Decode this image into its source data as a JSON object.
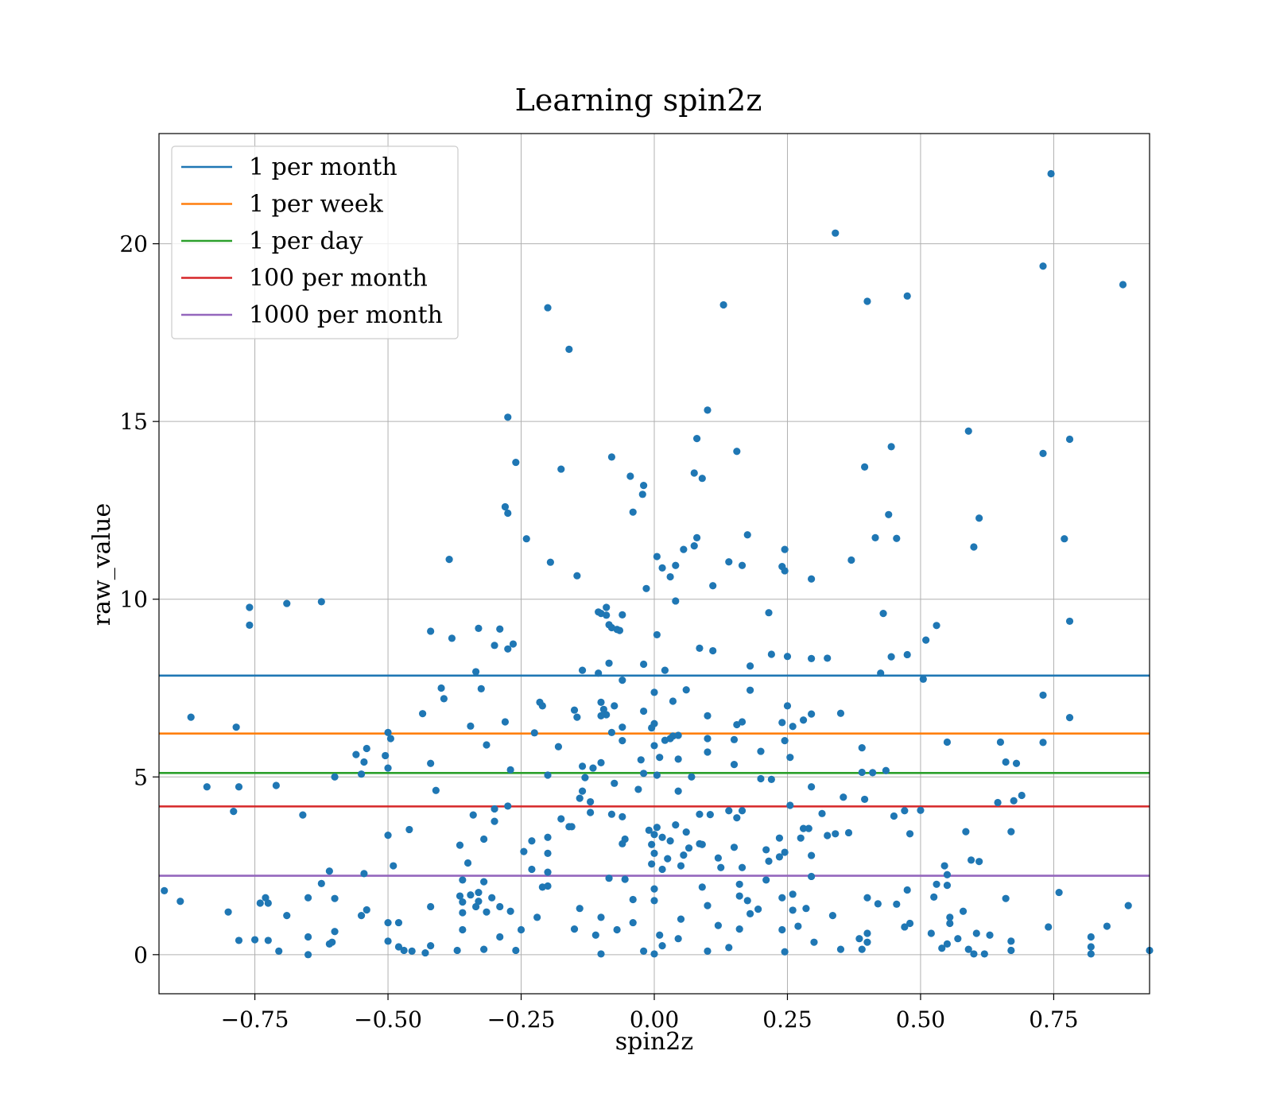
{
  "chart_data": {
    "type": "scatter",
    "title": "Learning spin2z",
    "xlabel": "spin2z",
    "ylabel": "raw_value",
    "xlim": [
      -0.93,
      0.93
    ],
    "ylim": [
      -1.1,
      23.1
    ],
    "xticks": [
      -0.75,
      -0.5,
      -0.25,
      0.0,
      0.25,
      0.5,
      0.75
    ],
    "xtick_labels": [
      "−0.75",
      "−0.50",
      "−0.25",
      "0.00",
      "0.25",
      "0.50",
      "0.75"
    ],
    "yticks": [
      0,
      5,
      10,
      15,
      20
    ],
    "ytick_labels": [
      "0",
      "5",
      "10",
      "15",
      "20"
    ],
    "grid": true,
    "legend_position": "upper-left",
    "point_color": "#1f77b4",
    "thresholds": [
      {
        "name": "1 per month",
        "value": 7.85,
        "color": "#1f77b4"
      },
      {
        "name": "1 per week",
        "value": 6.22,
        "color": "#ff7f0e"
      },
      {
        "name": "1 per day",
        "value": 5.11,
        "color": "#2ca02c"
      },
      {
        "name": "100 per month",
        "value": 4.17,
        "color": "#d62728"
      },
      {
        "name": "1000 per month",
        "value": 2.22,
        "color": "#9467bd"
      }
    ],
    "points": [
      [
        0.745,
        21.97
      ],
      [
        0.34,
        20.3
      ],
      [
        0.73,
        19.37
      ],
      [
        0.88,
        18.85
      ],
      [
        0.475,
        18.53
      ],
      [
        0.4,
        18.38
      ],
      [
        0.13,
        18.28
      ],
      [
        -0.2,
        18.2
      ],
      [
        -0.16,
        17.03
      ],
      [
        0.1,
        15.32
      ],
      [
        -0.275,
        15.12
      ],
      [
        0.59,
        14.73
      ],
      [
        0.08,
        14.52
      ],
      [
        0.78,
        14.5
      ],
      [
        0.445,
        14.29
      ],
      [
        0.155,
        14.16
      ],
      [
        0.73,
        14.1
      ],
      [
        -0.08,
        14.0
      ],
      [
        -0.26,
        13.85
      ],
      [
        0.395,
        13.72
      ],
      [
        -0.175,
        13.66
      ],
      [
        0.075,
        13.55
      ],
      [
        -0.045,
        13.46
      ],
      [
        0.09,
        13.4
      ],
      [
        -0.02,
        13.2
      ],
      [
        -0.022,
        12.95
      ],
      [
        -0.28,
        12.6
      ],
      [
        -0.04,
        12.45
      ],
      [
        -0.275,
        12.42
      ],
      [
        0.44,
        12.38
      ],
      [
        0.61,
        12.28
      ],
      [
        0.175,
        11.81
      ],
      [
        -0.24,
        11.7
      ],
      [
        0.08,
        11.73
      ],
      [
        0.415,
        11.73
      ],
      [
        0.455,
        11.71
      ],
      [
        0.77,
        11.7
      ],
      [
        0.055,
        11.4
      ],
      [
        0.6,
        11.47
      ],
      [
        0.075,
        11.5
      ],
      [
        0.245,
        11.4
      ],
      [
        0.005,
        11.2
      ],
      [
        -0.385,
        11.12
      ],
      [
        0.37,
        11.1
      ],
      [
        0.14,
        11.05
      ],
      [
        -0.195,
        11.04
      ],
      [
        0.04,
        10.95
      ],
      [
        0.165,
        10.95
      ],
      [
        0.015,
        10.88
      ],
      [
        0.24,
        10.92
      ],
      [
        0.245,
        10.8
      ],
      [
        0.03,
        10.63
      ],
      [
        -0.145,
        10.66
      ],
      [
        0.295,
        10.57
      ],
      [
        0.11,
        10.38
      ],
      [
        -0.015,
        10.3
      ],
      [
        0.04,
        9.95
      ],
      [
        -0.625,
        9.93
      ],
      [
        -0.69,
        9.88
      ],
      [
        -0.76,
        9.77
      ],
      [
        -0.09,
        9.77
      ],
      [
        -0.105,
        9.64
      ],
      [
        -0.1,
        9.6
      ],
      [
        -0.09,
        9.55
      ],
      [
        -0.06,
        9.56
      ],
      [
        0.215,
        9.62
      ],
      [
        0.43,
        9.6
      ],
      [
        0.78,
        9.38
      ],
      [
        -0.76,
        9.27
      ],
      [
        -0.085,
        9.28
      ],
      [
        -0.08,
        9.2
      ],
      [
        -0.07,
        9.15
      ],
      [
        -0.065,
        9.12
      ],
      [
        0.53,
        9.26
      ],
      [
        -0.33,
        9.18
      ],
      [
        -0.29,
        9.16
      ],
      [
        -0.42,
        9.1
      ],
      [
        0.005,
        9.0
      ],
      [
        -0.38,
        8.9
      ],
      [
        0.51,
        8.85
      ],
      [
        -0.3,
        8.7
      ],
      [
        -0.265,
        8.74
      ],
      [
        -0.275,
        8.6
      ],
      [
        0.085,
        8.62
      ],
      [
        0.11,
        8.55
      ],
      [
        0.22,
        8.45
      ],
      [
        0.445,
        8.38
      ],
      [
        0.475,
        8.44
      ],
      [
        0.25,
        8.39
      ],
      [
        0.295,
        8.33
      ],
      [
        0.325,
        8.34
      ],
      [
        -0.085,
        8.2
      ],
      [
        -0.02,
        8.17
      ],
      [
        0.18,
        8.12
      ],
      [
        0.02,
        8.0
      ],
      [
        -0.335,
        7.96
      ],
      [
        -0.135,
        8.0
      ],
      [
        0.425,
        7.92
      ],
      [
        -0.105,
        7.92
      ],
      [
        0.505,
        7.75
      ],
      [
        -0.06,
        7.72
      ],
      [
        -0.4,
        7.5
      ],
      [
        -0.325,
        7.48
      ],
      [
        0.06,
        7.45
      ],
      [
        0.18,
        7.44
      ],
      [
        0.0,
        7.38
      ],
      [
        0.73,
        7.3
      ],
      [
        -0.395,
        7.2
      ],
      [
        -0.215,
        7.1
      ],
      [
        0.035,
        7.13
      ],
      [
        -0.1,
        7.1
      ],
      [
        -0.21,
        7.0
      ],
      [
        0.25,
        7.0
      ],
      [
        -0.075,
        7.0
      ],
      [
        -0.095,
        6.9
      ],
      [
        -0.15,
        6.88
      ],
      [
        -0.02,
        6.85
      ],
      [
        0.35,
        6.79
      ],
      [
        -0.435,
        6.78
      ],
      [
        -0.09,
        6.75
      ],
      [
        -0.1,
        6.72
      ],
      [
        0.295,
        6.77
      ],
      [
        0.1,
        6.72
      ],
      [
        0.78,
        6.67
      ],
      [
        -0.145,
        6.68
      ],
      [
        -0.87,
        6.68
      ],
      [
        0.28,
        6.6
      ],
      [
        -0.28,
        6.55
      ],
      [
        0.24,
        6.53
      ],
      [
        0.165,
        6.55
      ],
      [
        0.0,
        6.5
      ],
      [
        0.155,
        6.47
      ],
      [
        0.26,
        6.42
      ],
      [
        -0.345,
        6.43
      ],
      [
        -0.785,
        6.4
      ],
      [
        -0.06,
        6.4
      ],
      [
        -0.005,
        6.38
      ],
      [
        -0.08,
        6.25
      ],
      [
        -0.225,
        6.24
      ],
      [
        0.045,
        6.17
      ],
      [
        0.035,
        6.15
      ],
      [
        -0.5,
        6.25
      ],
      [
        0.03,
        6.08
      ],
      [
        0.02,
        6.03
      ],
      [
        0.1,
        6.08
      ],
      [
        -0.495,
        6.08
      ],
      [
        0.15,
        6.05
      ],
      [
        0.245,
        6.02
      ],
      [
        -0.06,
        6.02
      ],
      [
        0.55,
        5.98
      ],
      [
        0.65,
        5.98
      ],
      [
        0.73,
        5.97
      ],
      [
        0.0,
        5.88
      ],
      [
        -0.315,
        5.9
      ],
      [
        -0.18,
        5.85
      ],
      [
        0.39,
        5.82
      ],
      [
        -0.54,
        5.8
      ],
      [
        0.2,
        5.72
      ],
      [
        0.1,
        5.7
      ],
      [
        -0.56,
        5.63
      ],
      [
        0.01,
        5.55
      ],
      [
        0.255,
        5.55
      ],
      [
        -0.505,
        5.6
      ],
      [
        0.045,
        5.5
      ],
      [
        -0.025,
        5.48
      ],
      [
        0.66,
        5.42
      ],
      [
        -0.545,
        5.42
      ],
      [
        -0.42,
        5.38
      ],
      [
        0.68,
        5.38
      ],
      [
        0.15,
        5.35
      ],
      [
        -0.1,
        5.4
      ],
      [
        -0.115,
        5.25
      ],
      [
        -0.135,
        5.3
      ],
      [
        -0.5,
        5.25
      ],
      [
        -0.27,
        5.2
      ],
      [
        0.435,
        5.18
      ],
      [
        0.39,
        5.13
      ],
      [
        0.41,
        5.12
      ],
      [
        -0.02,
        5.1
      ],
      [
        -0.2,
        5.05
      ],
      [
        0.005,
        5.05
      ],
      [
        -0.55,
        5.08
      ],
      [
        -0.6,
        5.0
      ],
      [
        0.07,
        5.0
      ],
      [
        0.2,
        4.95
      ],
      [
        0.22,
        4.93
      ],
      [
        -0.13,
        4.98
      ],
      [
        -0.075,
        4.82
      ],
      [
        0.295,
        4.72
      ],
      [
        -0.71,
        4.76
      ],
      [
        -0.84,
        4.72
      ],
      [
        -0.78,
        4.72
      ],
      [
        -0.03,
        4.65
      ],
      [
        0.045,
        4.6
      ],
      [
        -0.41,
        4.62
      ],
      [
        -0.135,
        4.6
      ],
      [
        0.69,
        4.48
      ],
      [
        0.355,
        4.43
      ],
      [
        0.395,
        4.37
      ],
      [
        -0.14,
        4.4
      ],
      [
        0.675,
        4.33
      ],
      [
        0.645,
        4.28
      ],
      [
        -0.12,
        4.3
      ],
      [
        0.255,
        4.2
      ],
      [
        -0.275,
        4.18
      ],
      [
        -0.3,
        4.1
      ],
      [
        0.47,
        4.05
      ],
      [
        0.5,
        4.06
      ],
      [
        -0.79,
        4.03
      ],
      [
        0.14,
        4.05
      ],
      [
        0.165,
        4.05
      ],
      [
        -0.12,
        4.0
      ],
      [
        0.085,
        3.95
      ],
      [
        -0.66,
        3.93
      ],
      [
        0.105,
        3.94
      ],
      [
        -0.34,
        3.93
      ],
      [
        0.45,
        3.9
      ],
      [
        0.315,
        3.97
      ],
      [
        -0.08,
        3.95
      ],
      [
        -0.06,
        3.88
      ],
      [
        0.155,
        3.85
      ],
      [
        -0.175,
        3.82
      ],
      [
        -0.3,
        3.75
      ],
      [
        -0.16,
        3.6
      ],
      [
        -0.155,
        3.6
      ],
      [
        0.04,
        3.65
      ],
      [
        0.005,
        3.58
      ],
      [
        0.28,
        3.55
      ],
      [
        0.29,
        3.55
      ],
      [
        -0.46,
        3.52
      ],
      [
        -0.01,
        3.5
      ],
      [
        0.06,
        3.45
      ],
      [
        0.585,
        3.46
      ],
      [
        0.67,
        3.46
      ],
      [
        0.34,
        3.4
      ],
      [
        0.365,
        3.43
      ],
      [
        0.0,
        3.38
      ],
      [
        0.48,
        3.4
      ],
      [
        -0.5,
        3.36
      ],
      [
        -0.2,
        3.3
      ],
      [
        0.015,
        3.3
      ],
      [
        -0.055,
        3.25
      ],
      [
        -0.32,
        3.25
      ],
      [
        0.235,
        3.28
      ],
      [
        0.325,
        3.35
      ],
      [
        0.275,
        3.28
      ],
      [
        -0.23,
        3.2
      ],
      [
        0.03,
        3.2
      ],
      [
        0.085,
        3.12
      ],
      [
        0.09,
        3.1
      ],
      [
        -0.365,
        3.08
      ],
      [
        -0.06,
        3.12
      ],
      [
        -0.005,
        3.1
      ],
      [
        0.065,
        3.0
      ],
      [
        0.15,
        3.02
      ],
      [
        -0.245,
        2.9
      ],
      [
        0.21,
        2.95
      ],
      [
        0.245,
        2.88
      ],
      [
        -0.2,
        2.85
      ],
      [
        0.0,
        2.85
      ],
      [
        0.295,
        2.79
      ],
      [
        0.055,
        2.8
      ],
      [
        0.235,
        2.75
      ],
      [
        0.025,
        2.7
      ],
      [
        0.12,
        2.72
      ],
      [
        0.595,
        2.66
      ],
      [
        0.61,
        2.62
      ],
      [
        -0.35,
        2.58
      ],
      [
        0.215,
        2.63
      ],
      [
        -0.005,
        2.55
      ],
      [
        -0.49,
        2.5
      ],
      [
        0.05,
        2.5
      ],
      [
        0.545,
        2.5
      ],
      [
        0.165,
        2.45
      ],
      [
        -0.23,
        2.4
      ],
      [
        0.015,
        2.4
      ],
      [
        0.125,
        2.45
      ],
      [
        -0.61,
        2.35
      ],
      [
        -0.2,
        2.32
      ],
      [
        -0.545,
        2.28
      ],
      [
        0.55,
        2.25
      ],
      [
        0.295,
        2.2
      ],
      [
        -0.085,
        2.15
      ],
      [
        -0.36,
        2.1
      ],
      [
        0.21,
        2.1
      ],
      [
        -0.055,
        2.12
      ],
      [
        -0.32,
        2.05
      ],
      [
        -0.625,
        2.0
      ],
      [
        0.16,
        1.98
      ],
      [
        0.53,
        1.98
      ],
      [
        0.55,
        1.95
      ],
      [
        -0.2,
        1.93
      ],
      [
        0.09,
        1.9
      ],
      [
        -0.21,
        1.9
      ],
      [
        0.0,
        1.85
      ],
      [
        0.475,
        1.82
      ],
      [
        -0.92,
        1.8
      ],
      [
        0.76,
        1.75
      ],
      [
        -0.33,
        1.75
      ],
      [
        0.26,
        1.7
      ],
      [
        -0.345,
        1.68
      ],
      [
        -0.365,
        1.65
      ],
      [
        0.16,
        1.65
      ],
      [
        0.525,
        1.62
      ],
      [
        -0.305,
        1.6
      ],
      [
        -0.6,
        1.58
      ],
      [
        0.66,
        1.58
      ],
      [
        -0.65,
        1.6
      ],
      [
        -0.73,
        1.6
      ],
      [
        -0.04,
        1.55
      ],
      [
        0.24,
        1.6
      ],
      [
        0.4,
        1.6
      ],
      [
        0.175,
        1.52
      ],
      [
        -0.89,
        1.5
      ],
      [
        -0.33,
        1.5
      ],
      [
        0.0,
        1.52
      ],
      [
        -0.36,
        1.48
      ],
      [
        -0.74,
        1.45
      ],
      [
        -0.725,
        1.45
      ],
      [
        0.42,
        1.43
      ],
      [
        0.455,
        1.42
      ],
      [
        0.89,
        1.38
      ],
      [
        0.1,
        1.38
      ],
      [
        -0.42,
        1.35
      ],
      [
        -0.29,
        1.35
      ],
      [
        -0.335,
        1.35
      ],
      [
        -0.14,
        1.3
      ],
      [
        0.285,
        1.3
      ],
      [
        0.195,
        1.28
      ],
      [
        -0.54,
        1.26
      ],
      [
        0.26,
        1.25
      ],
      [
        0.58,
        1.22
      ],
      [
        -0.8,
        1.2
      ],
      [
        -0.315,
        1.2
      ],
      [
        -0.36,
        1.18
      ],
      [
        -0.27,
        1.22
      ],
      [
        0.335,
        1.1
      ],
      [
        0.18,
        1.15
      ],
      [
        -0.69,
        1.1
      ],
      [
        -0.55,
        1.1
      ],
      [
        0.555,
        1.05
      ],
      [
        -0.22,
        1.05
      ],
      [
        -0.1,
        1.05
      ],
      [
        0.05,
        1.0
      ],
      [
        -0.48,
        0.9
      ],
      [
        0.48,
        0.88
      ],
      [
        -0.5,
        0.9
      ],
      [
        -0.04,
        0.9
      ],
      [
        0.555,
        0.88
      ],
      [
        0.12,
        0.82
      ],
      [
        0.27,
        0.8
      ],
      [
        0.47,
        0.78
      ],
      [
        0.74,
        0.78
      ],
      [
        0.85,
        0.8
      ],
      [
        -0.36,
        0.7
      ],
      [
        -0.25,
        0.7
      ],
      [
        -0.15,
        0.72
      ],
      [
        -0.07,
        0.7
      ],
      [
        0.16,
        0.72
      ],
      [
        0.24,
        0.7
      ],
      [
        -0.6,
        0.65
      ],
      [
        0.4,
        0.6
      ],
      [
        0.52,
        0.6
      ],
      [
        0.605,
        0.6
      ],
      [
        0.63,
        0.55
      ],
      [
        -0.11,
        0.55
      ],
      [
        0.01,
        0.55
      ],
      [
        -0.65,
        0.5
      ],
      [
        0.82,
        0.5
      ],
      [
        -0.29,
        0.5
      ],
      [
        0.045,
        0.45
      ],
      [
        0.385,
        0.45
      ],
      [
        0.57,
        0.45
      ],
      [
        -0.78,
        0.4
      ],
      [
        -0.75,
        0.42
      ],
      [
        -0.725,
        0.4
      ],
      [
        -0.5,
        0.38
      ],
      [
        -0.605,
        0.35
      ],
      [
        0.3,
        0.35
      ],
      [
        0.4,
        0.35
      ],
      [
        0.67,
        0.38
      ],
      [
        0.55,
        0.3
      ],
      [
        -0.48,
        0.22
      ],
      [
        -0.42,
        0.25
      ],
      [
        0.82,
        0.22
      ],
      [
        -0.61,
        0.3
      ],
      [
        0.015,
        0.25
      ],
      [
        -0.32,
        0.15
      ],
      [
        0.14,
        0.2
      ],
      [
        0.39,
        0.15
      ],
      [
        0.59,
        0.15
      ],
      [
        -0.47,
        0.12
      ],
      [
        -0.455,
        0.1
      ],
      [
        -0.37,
        0.12
      ],
      [
        -0.705,
        0.1
      ],
      [
        -0.02,
        0.1
      ],
      [
        0.1,
        0.1
      ],
      [
        0.35,
        0.15
      ],
      [
        0.54,
        0.18
      ],
      [
        0.245,
        0.08
      ],
      [
        -0.43,
        0.05
      ],
      [
        0.82,
        0.02
      ],
      [
        -0.65,
        0.0
      ],
      [
        -0.1,
        0.02
      ],
      [
        0.0,
        0.02
      ],
      [
        0.6,
        0.02
      ],
      [
        0.62,
        0.02
      ],
      [
        0.93,
        0.12
      ],
      [
        0.67,
        0.12
      ],
      [
        -0.26,
        0.12
      ]
    ]
  }
}
